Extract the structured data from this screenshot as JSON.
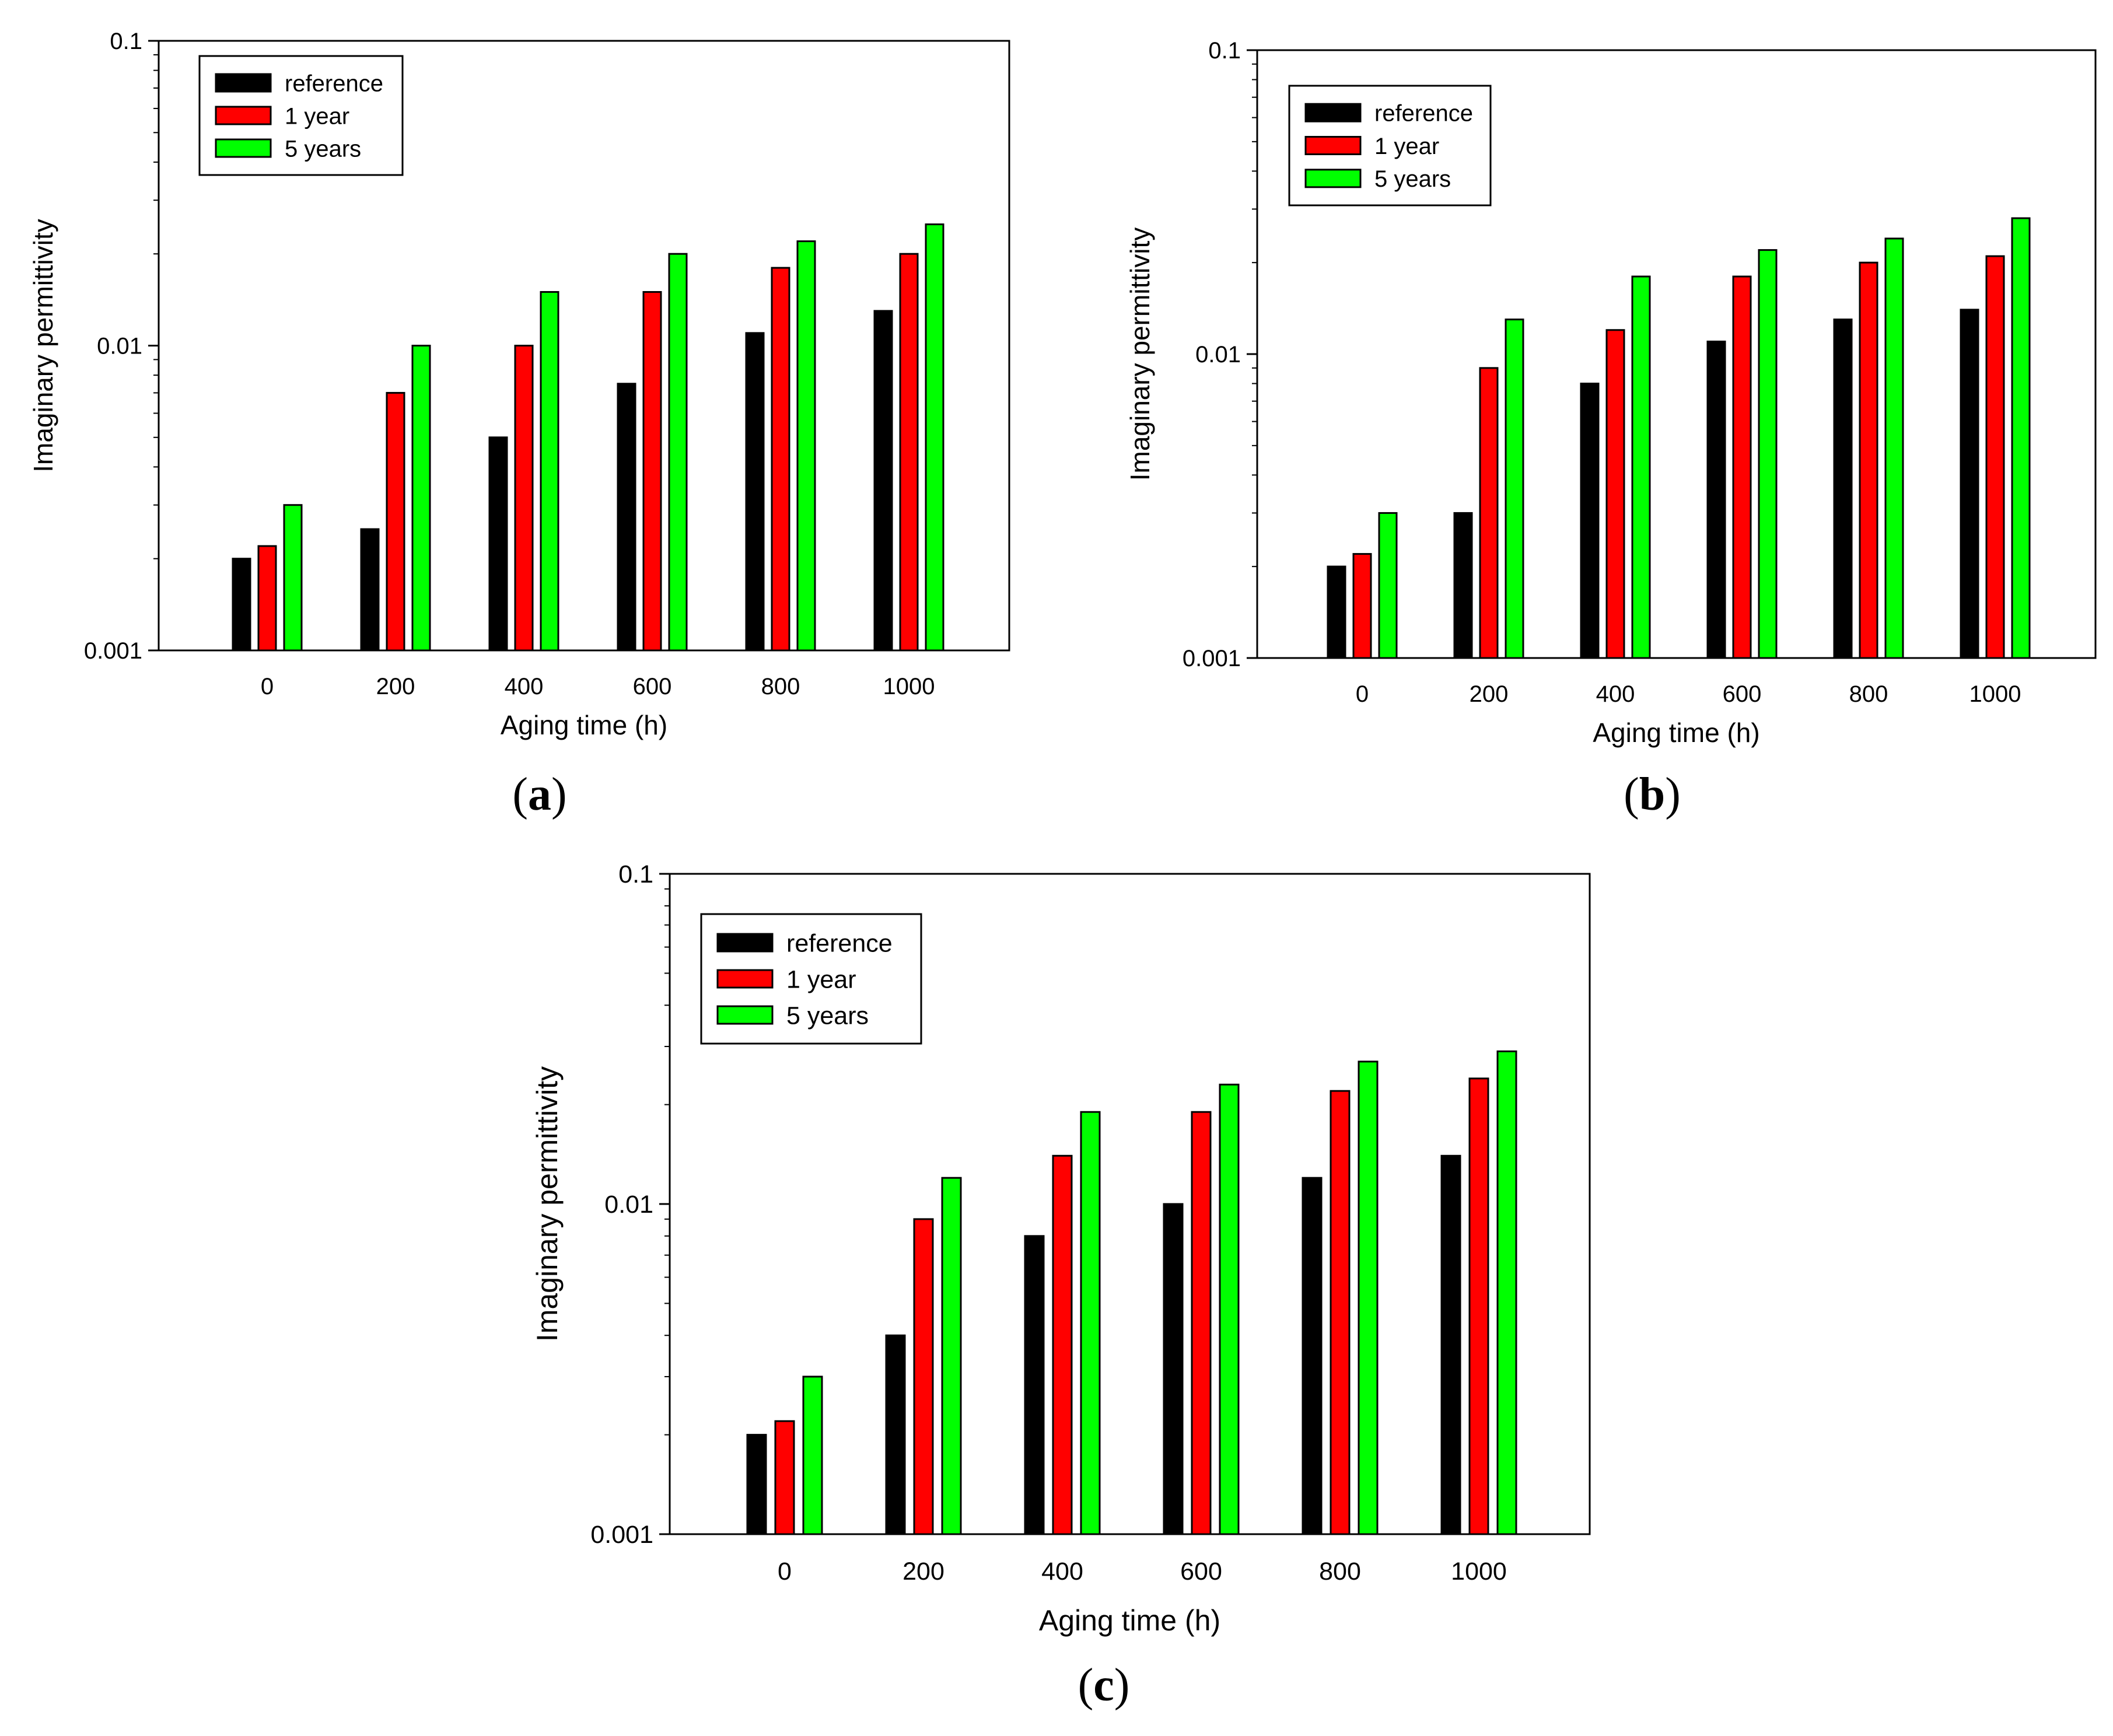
{
  "chart_data": [
    {
      "type": "bar",
      "panel": "(a)",
      "panel_letter": "a",
      "xlabel": "Aging time (h)",
      "ylabel": "Imaginary permittivity",
      "yscale": "log",
      "ylim": [
        0.001,
        0.1
      ],
      "yticks": [
        "0.001",
        "0.01",
        "0.1"
      ],
      "categories": [
        "0",
        "200",
        "400",
        "600",
        "800",
        "1000"
      ],
      "legend_position": "top-left",
      "series": [
        {
          "name": "reference",
          "color": "#000000",
          "values": [
            0.002,
            0.0025,
            0.005,
            0.0075,
            0.011,
            0.013
          ]
        },
        {
          "name": "1 year",
          "color": "#ff0000",
          "values": [
            0.0022,
            0.007,
            0.01,
            0.015,
            0.018,
            0.02
          ]
        },
        {
          "name": "5 years",
          "color": "#00ff00",
          "values": [
            0.003,
            0.01,
            0.015,
            0.02,
            0.022,
            0.025
          ]
        }
      ]
    },
    {
      "type": "bar",
      "panel": "(b)",
      "panel_letter": "b",
      "xlabel": "Aging time (h)",
      "ylabel": "Imaginary permittivity",
      "yscale": "log",
      "ylim": [
        0.001,
        0.1
      ],
      "yticks": [
        "0.001",
        "0.01",
        "0.1"
      ],
      "categories": [
        "0",
        "200",
        "400",
        "600",
        "800",
        "1000"
      ],
      "legend_position": "top-left",
      "series": [
        {
          "name": "reference",
          "color": "#000000",
          "values": [
            0.002,
            0.003,
            0.008,
            0.011,
            0.013,
            0.014
          ]
        },
        {
          "name": "1 year",
          "color": "#ff0000",
          "values": [
            0.0022,
            0.009,
            0.012,
            0.018,
            0.02,
            0.021
          ]
        },
        {
          "name": "5 years",
          "color": "#00ff00",
          "values": [
            0.003,
            0.013,
            0.018,
            0.022,
            0.024,
            0.028
          ]
        }
      ]
    },
    {
      "type": "bar",
      "panel": "(c)",
      "panel_letter": "c",
      "xlabel": "Aging time (h)",
      "ylabel": "Imaginary permittivity",
      "yscale": "log",
      "ylim": [
        0.001,
        0.1
      ],
      "yticks": [
        "0.001",
        "0.01",
        "0.1"
      ],
      "categories": [
        "0",
        "200",
        "400",
        "600",
        "800",
        "1000"
      ],
      "legend_position": "top-left",
      "series": [
        {
          "name": "reference",
          "color": "#000000",
          "values": [
            0.002,
            0.004,
            0.008,
            0.01,
            0.012,
            0.014
          ]
        },
        {
          "name": "1 year",
          "color": "#ff0000",
          "values": [
            0.0022,
            0.009,
            0.014,
            0.019,
            0.022,
            0.024
          ]
        },
        {
          "name": "5 years",
          "color": "#00ff00",
          "values": [
            0.003,
            0.012,
            0.019,
            0.023,
            0.027,
            0.029
          ]
        }
      ]
    }
  ]
}
